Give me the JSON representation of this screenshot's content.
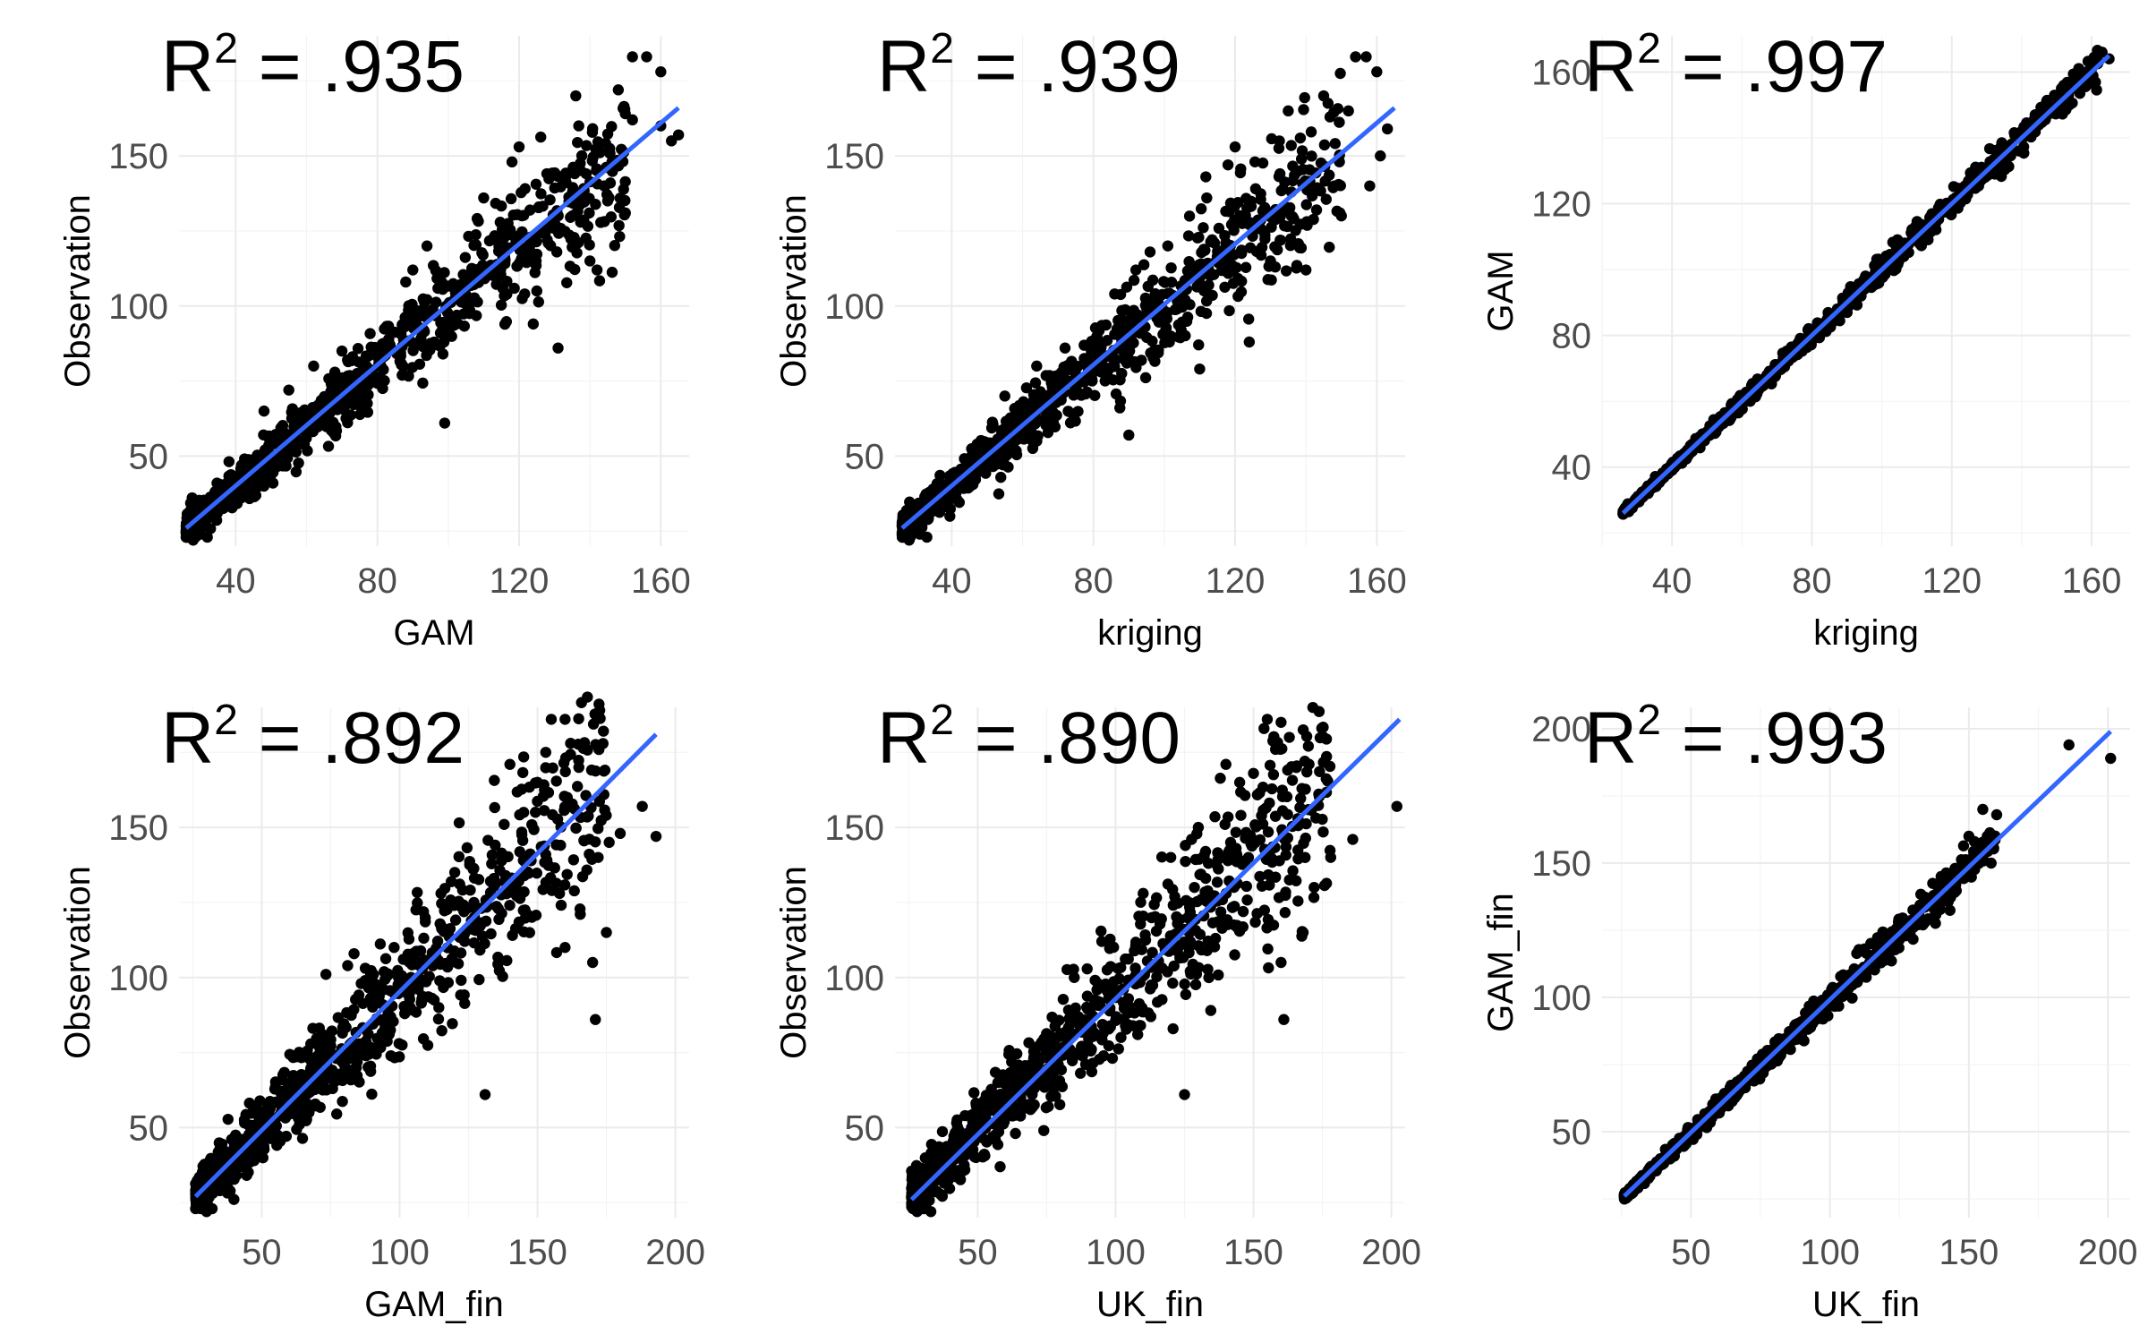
{
  "figure": {
    "background": "#ffffff",
    "point_color": "#000000",
    "fit_color": "#3366FF"
  },
  "chart_data": [
    {
      "type": "scatter",
      "annotation": {
        "prefix": "R",
        "superscript": "2",
        "value": " = .935"
      },
      "xlabel": "GAM",
      "ylabel": "Observation",
      "xlim": [
        24,
        168
      ],
      "ylim": [
        20,
        190
      ],
      "xticks": [
        40,
        80,
        120,
        160
      ],
      "yticks": [
        50,
        100,
        150
      ],
      "fit": {
        "x": [
          26,
          165
        ],
        "y": [
          26,
          166
        ]
      },
      "sample": {
        "seed": 11,
        "n": 900,
        "slope": 1.0,
        "intercept": 0,
        "noise": 0.085,
        "xmin": 26,
        "xmax": 150
      },
      "points": [
        [
          28,
          22
        ],
        [
          30,
          24
        ],
        [
          32,
          23
        ],
        [
          99,
          61
        ],
        [
          131,
          86
        ],
        [
          124,
          94
        ],
        [
          125,
          105
        ],
        [
          135,
          130
        ],
        [
          140,
          115
        ],
        [
          142,
          112
        ],
        [
          144,
          140
        ],
        [
          145,
          135
        ],
        [
          150,
          131
        ],
        [
          152,
          162
        ],
        [
          152,
          183
        ],
        [
          156,
          183
        ],
        [
          160,
          178
        ],
        [
          160,
          160
        ],
        [
          163,
          155
        ],
        [
          165,
          157
        ],
        [
          148,
          172
        ],
        [
          136,
          170
        ],
        [
          120,
          153
        ],
        [
          118,
          148
        ],
        [
          110,
          136
        ],
        [
          90,
          112
        ],
        [
          94,
          120
        ],
        [
          88,
          108
        ],
        [
          70,
          85
        ],
        [
          62,
          80
        ],
        [
          55,
          72
        ],
        [
          48,
          65
        ]
      ]
    },
    {
      "type": "scatter",
      "annotation": {
        "prefix": "R",
        "superscript": "2",
        "value": " = .939"
      },
      "xlabel": "kriging",
      "ylabel": "Observation",
      "xlim": [
        24,
        168
      ],
      "ylim": [
        20,
        190
      ],
      "xticks": [
        40,
        80,
        120,
        160
      ],
      "yticks": [
        50,
        100,
        150
      ],
      "fit": {
        "x": [
          26,
          165
        ],
        "y": [
          26,
          166
        ]
      },
      "sample": {
        "seed": 23,
        "n": 900,
        "slope": 1.0,
        "intercept": 0,
        "noise": 0.082,
        "xmin": 26,
        "xmax": 150
      },
      "points": [
        [
          28,
          22
        ],
        [
          31,
          24
        ],
        [
          33,
          23
        ],
        [
          90,
          57
        ],
        [
          110,
          79
        ],
        [
          124,
          88
        ],
        [
          130,
          115
        ],
        [
          140,
          112
        ],
        [
          143,
          132
        ],
        [
          148,
          140
        ],
        [
          150,
          130
        ],
        [
          152,
          165
        ],
        [
          154,
          183
        ],
        [
          157,
          183
        ],
        [
          160,
          178
        ],
        [
          158,
          140
        ],
        [
          163,
          159
        ],
        [
          161,
          150
        ],
        [
          145,
          170
        ],
        [
          135,
          165
        ],
        [
          120,
          153
        ],
        [
          118,
          147
        ],
        [
          112,
          136
        ],
        [
          96,
          118
        ],
        [
          92,
          112
        ],
        [
          86,
          104
        ],
        [
          72,
          86
        ],
        [
          64,
          80
        ],
        [
          55,
          70
        ]
      ]
    },
    {
      "type": "scatter",
      "annotation": {
        "prefix": "R",
        "superscript": "2",
        "value": " = .997"
      },
      "xlabel": "kriging",
      "ylabel": "GAM",
      "xlim": [
        20,
        171
      ],
      "ylim": [
        16,
        171
      ],
      "xticks": [
        40,
        80,
        120,
        160
      ],
      "yticks": [
        40,
        80,
        120,
        160
      ],
      "fit": {
        "x": [
          26,
          165
        ],
        "y": [
          26,
          165
        ]
      },
      "sample": {
        "seed": 37,
        "n": 900,
        "slope": 1.0,
        "intercept": 0,
        "noise": 0.018,
        "xmin": 26,
        "xmax": 162
      },
      "points": [
        [
          163,
          166
        ],
        [
          165,
          164
        ],
        [
          26,
          26
        ],
        [
          27,
          27
        ],
        [
          28,
          28
        ],
        [
          140,
          142
        ],
        [
          150,
          150
        ],
        [
          156,
          157
        ],
        [
          160,
          161
        ]
      ]
    },
    {
      "type": "scatter",
      "annotation": {
        "prefix": "R",
        "superscript": "2",
        "value": " = .892"
      },
      "xlabel": "GAM_fin",
      "ylabel": "Observation",
      "xlim": [
        20,
        205
      ],
      "ylim": [
        20,
        190
      ],
      "xticks": [
        50,
        100,
        150,
        200
      ],
      "yticks": [
        50,
        100,
        150
      ],
      "fit": {
        "x": [
          26,
          193
        ],
        "y": [
          27,
          181
        ]
      },
      "sample": {
        "seed": 51,
        "n": 900,
        "slope": 0.93,
        "intercept": 3,
        "noise": 0.11,
        "xmin": 26,
        "xmax": 175
      },
      "points": [
        [
          28,
          24
        ],
        [
          30,
          22
        ],
        [
          32,
          23
        ],
        [
          131,
          61
        ],
        [
          171,
          86
        ],
        [
          170,
          105
        ],
        [
          175,
          115
        ],
        [
          160,
          110
        ],
        [
          158,
          128
        ],
        [
          172,
          140
        ],
        [
          176,
          145
        ],
        [
          180,
          148
        ],
        [
          188,
          157
        ],
        [
          193,
          147
        ],
        [
          153,
          175
        ],
        [
          155,
          186
        ],
        [
          160,
          186
        ],
        [
          162,
          178
        ],
        [
          165,
          170
        ],
        [
          140,
          171
        ],
        [
          150,
          165
        ],
        [
          145,
          155
        ],
        [
          120,
          135
        ],
        [
          115,
          128
        ],
        [
          98,
          110
        ],
        [
          90,
          100
        ]
      ]
    },
    {
      "type": "scatter",
      "annotation": {
        "prefix": "R",
        "superscript": "2",
        "value": " = .890"
      },
      "xlabel": "UK_fin",
      "ylabel": "Observation",
      "xlim": [
        20,
        205
      ],
      "ylim": [
        20,
        190
      ],
      "xticks": [
        50,
        100,
        150,
        200
      ],
      "yticks": [
        50,
        100,
        150
      ],
      "fit": {
        "x": [
          26,
          203
        ],
        "y": [
          26,
          186
        ]
      },
      "sample": {
        "seed": 67,
        "n": 900,
        "slope": 0.9,
        "intercept": 4,
        "noise": 0.11,
        "xmin": 26,
        "xmax": 178
      },
      "points": [
        [
          28,
          22
        ],
        [
          30,
          23
        ],
        [
          33,
          22
        ],
        [
          125,
          61
        ],
        [
          161,
          86
        ],
        [
          160,
          105
        ],
        [
          168,
          115
        ],
        [
          172,
          130
        ],
        [
          178,
          140
        ],
        [
          186,
          146
        ],
        [
          202,
          157
        ],
        [
          150,
          168
        ],
        [
          155,
          186
        ],
        [
          160,
          185
        ],
        [
          163,
          180
        ],
        [
          158,
          176
        ],
        [
          140,
          171
        ],
        [
          145,
          165
        ],
        [
          130,
          150
        ],
        [
          120,
          140
        ],
        [
          110,
          128
        ],
        [
          95,
          112
        ],
        [
          85,
          100
        ]
      ]
    },
    {
      "type": "scatter",
      "annotation": {
        "prefix": "R",
        "superscript": "2",
        "value": " = .993"
      },
      "xlabel": "UK_fin",
      "ylabel": "GAM_fin",
      "xlim": [
        18,
        208
      ],
      "ylim": [
        18,
        208
      ],
      "xticks": [
        50,
        100,
        150,
        200
      ],
      "yticks": [
        50,
        100,
        150,
        200
      ],
      "fit": {
        "x": [
          26,
          201
        ],
        "y": [
          26,
          199
        ]
      },
      "sample": {
        "seed": 79,
        "n": 900,
        "slope": 0.99,
        "intercept": 0,
        "noise": 0.025,
        "xmin": 26,
        "xmax": 160
      },
      "points": [
        [
          186,
          194
        ],
        [
          201,
          189
        ],
        [
          155,
          170
        ],
        [
          160,
          168
        ],
        [
          150,
          160
        ],
        [
          152,
          158
        ],
        [
          158,
          150
        ],
        [
          155,
          153
        ],
        [
          145,
          148
        ],
        [
          140,
          145
        ],
        [
          26,
          26
        ],
        [
          27,
          27
        ],
        [
          29,
          28
        ]
      ]
    }
  ]
}
